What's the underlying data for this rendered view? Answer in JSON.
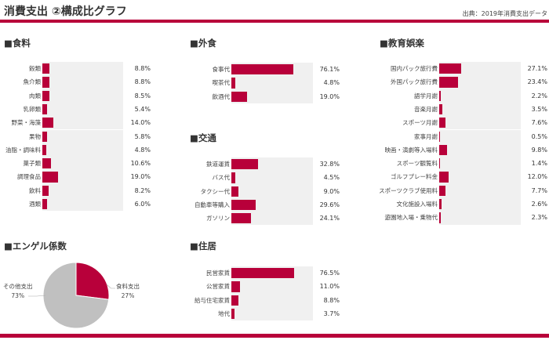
{
  "header": {
    "title": "消費支出 ②構成比グラフ",
    "source": "出典：2019年消費支出データ"
  },
  "colors": {
    "accent": "#b8003a",
    "track": "#f0f0f0",
    "pie_other": "#c0c0c0"
  },
  "chart_data": [
    {
      "type": "bar",
      "orientation": "horizontal",
      "title": "■食料",
      "xlim": [
        0,
        100
      ],
      "unit": "%",
      "categories": [
        "穀類",
        "魚介類",
        "肉類",
        "乳卵類",
        "野菜・海藻",
        "果物",
        "油脂・調味料",
        "菓子類",
        "調理食品",
        "飲料",
        "酒類"
      ],
      "values": [
        8.8,
        8.8,
        8.5,
        5.4,
        14.0,
        5.8,
        4.8,
        10.6,
        19.0,
        8.2,
        6.0
      ]
    },
    {
      "type": "bar",
      "orientation": "horizontal",
      "title": "■外食",
      "xlim": [
        0,
        100
      ],
      "unit": "%",
      "categories": [
        "食事代",
        "喫茶代",
        "飲酒代"
      ],
      "values": [
        76.1,
        4.8,
        19.0
      ]
    },
    {
      "type": "bar",
      "orientation": "horizontal",
      "title": "■交通",
      "xlim": [
        0,
        100
      ],
      "unit": "%",
      "categories": [
        "鉄道運賃",
        "バス代",
        "タクシー代",
        "自動車等購入",
        "ガソリン"
      ],
      "values": [
        32.8,
        4.5,
        9.0,
        29.6,
        24.1
      ]
    },
    {
      "type": "bar",
      "orientation": "horizontal",
      "title": "■教育娯楽",
      "xlim": [
        0,
        100
      ],
      "unit": "%",
      "categories": [
        "国内パック旅行費",
        "外国パック旅行費",
        "語学月謝",
        "音楽月謝",
        "スポーツ月謝",
        "家事月謝",
        "映画・演劇等入場料",
        "スポーツ観覧料",
        "ゴルフプレー料金",
        "スポーツクラブ使用料",
        "文化施設入場料",
        "遊園地入場・乗物代"
      ],
      "values": [
        27.1,
        23.4,
        2.2,
        3.5,
        7.6,
        0.5,
        9.8,
        1.4,
        12.0,
        7.7,
        2.6,
        2.3
      ]
    },
    {
      "type": "pie",
      "title": "■エンゲル係数",
      "slices": [
        {
          "label": "食料支出",
          "value": 27,
          "text": "27%"
        },
        {
          "label": "その他支出",
          "value": 73,
          "text": "73%"
        }
      ]
    },
    {
      "type": "bar",
      "orientation": "horizontal",
      "title": "■住居",
      "xlim": [
        0,
        100
      ],
      "unit": "%",
      "categories": [
        "民営家賃",
        "公営家賃",
        "給与住宅家賃",
        "地代"
      ],
      "values": [
        76.5,
        11.0,
        8.8,
        3.7
      ]
    }
  ]
}
